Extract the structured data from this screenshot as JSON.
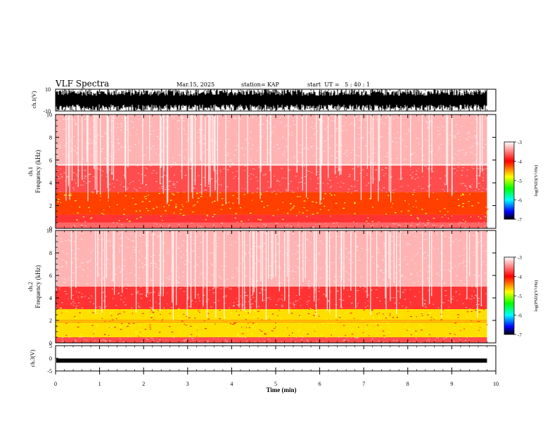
{
  "header": {
    "title": "VLF Spectra",
    "date": "Mar.15, 2025",
    "station": "station= KAP",
    "start": "start  UT =   5 : 40 : 1"
  },
  "colorbar": {
    "label": "log(PSD)(V²/Hz)",
    "ticks": [
      "-3",
      "-4",
      "-5",
      "-6",
      "-7"
    ],
    "stops": [
      "#ffffff",
      "#ff0000",
      "#ffff00",
      "#00ff00",
      "#00ffff",
      "#0000ff",
      "#000000"
    ]
  },
  "chart_data": [
    {
      "type": "line",
      "name": "waveform-ch1",
      "ylabel": "ch.1(V)",
      "ylim": [
        -10,
        10
      ],
      "yticks": [
        "10",
        "-10"
      ],
      "description_values": {
        "amplitude_range": [
          -10,
          10
        ]
      }
    },
    {
      "type": "heatmap",
      "name": "spectrogram-ch1",
      "ylabel": "ch.1\nFrequency (kHz)",
      "ylabel_line1": "ch.1",
      "ylabel_line2": "Frequency (kHz)",
      "ylim": [
        0,
        10
      ],
      "yticks": [
        "0",
        "2",
        "4",
        "6",
        "8",
        "10"
      ],
      "zlim": [
        -7,
        -3
      ],
      "bands": [
        {
          "f_from": 0.0,
          "f_to": 0.5,
          "level": -3.6
        },
        {
          "f_from": 0.5,
          "f_to": 1.2,
          "level": -3.8
        },
        {
          "f_from": 1.2,
          "f_to": 3.2,
          "level": -4.2
        },
        {
          "f_from": 3.2,
          "f_to": 5.5,
          "level": -3.7
        },
        {
          "f_from": 5.5,
          "f_to": 10.0,
          "level": -3.3
        }
      ],
      "tones_khz": [
        5.6
      ]
    },
    {
      "type": "heatmap",
      "name": "spectrogram-ch2",
      "ylabel_line1": "ch.2",
      "ylabel_line2": "Frequency (kHz)",
      "ylim": [
        0,
        10
      ],
      "yticks": [
        "0",
        "2",
        "4",
        "6",
        "8",
        "10"
      ],
      "zlim": [
        -7,
        -3
      ],
      "bands": [
        {
          "f_from": 0.0,
          "f_to": 0.5,
          "level": -3.7
        },
        {
          "f_from": 0.5,
          "f_to": 3.0,
          "level": -4.7
        },
        {
          "f_from": 3.0,
          "f_to": 5.0,
          "level": -3.8
        },
        {
          "f_from": 5.0,
          "f_to": 10.0,
          "level": -3.3
        }
      ],
      "tones_khz": [
        1.85,
        2.0
      ]
    },
    {
      "type": "line",
      "name": "waveform-ch3",
      "ylabel": "ch.3(V)",
      "ylim": [
        -5,
        5
      ],
      "yticks": [
        "5",
        "0",
        "-5"
      ],
      "level_v": -0.9
    }
  ],
  "xaxis": {
    "label": "Time (min)",
    "xlim": [
      0,
      10
    ],
    "ticks": [
      "0",
      "1",
      "2",
      "3",
      "4",
      "5",
      "6",
      "7",
      "8",
      "9",
      "10"
    ],
    "data_end": 9.8
  }
}
